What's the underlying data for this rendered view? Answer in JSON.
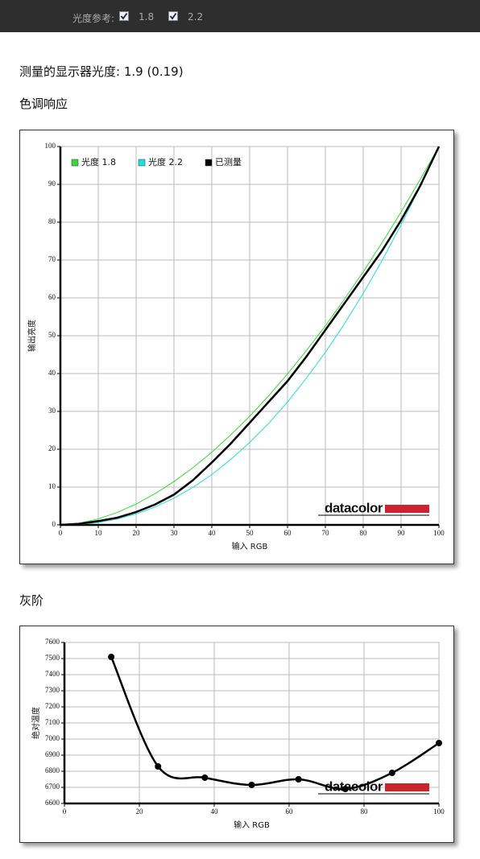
{
  "top_bar": {
    "label": "光度参考:",
    "options": [
      {
        "label": "1.8",
        "checked": true
      },
      {
        "label": "2.2",
        "checked": true
      }
    ]
  },
  "measured_text": "测量的显示器光度: 1.9 (0.19)",
  "chart_data": [
    {
      "type": "line",
      "title": "色调响应",
      "xlabel": "输入 RGB",
      "ylabel": "输出亮度",
      "watermark": "datacolor",
      "x": [
        0,
        5,
        10,
        15,
        20,
        25,
        30,
        35,
        40,
        45,
        50,
        55,
        60,
        65,
        70,
        75,
        80,
        85,
        90,
        95,
        100
      ],
      "series": [
        {
          "name": "光度 1.8",
          "color": "#33dd33",
          "width": 1,
          "values": [
            0,
            0.46,
            1.58,
            3.29,
            5.52,
            8.25,
            11.45,
            15.1,
            19.2,
            23.8,
            28.7,
            34.1,
            39.9,
            46.1,
            52.6,
            59.6,
            66.9,
            74.6,
            82.7,
            91.2,
            100
          ]
        },
        {
          "name": "光度 2.2",
          "color": "#22dddd",
          "width": 1,
          "values": [
            0,
            0.14,
            0.63,
            1.54,
            2.9,
            4.74,
            7.07,
            9.93,
            13.3,
            17.3,
            21.8,
            26.8,
            32.5,
            38.8,
            45.6,
            53.1,
            61.2,
            69.9,
            79.3,
            89.3,
            100
          ]
        },
        {
          "name": "已测量",
          "color": "#000000",
          "width": 2.5,
          "values": [
            0,
            0.3,
            1,
            1.9,
            3.4,
            5.4,
            8,
            11.8,
            16.5,
            21.5,
            27,
            32.5,
            38,
            44.5,
            51.5,
            58.5,
            65.5,
            72.5,
            80.5,
            89.5,
            100
          ]
        }
      ],
      "xlim": [
        0,
        100
      ],
      "ylim": [
        0,
        100
      ],
      "xticks": [
        0,
        10,
        20,
        30,
        40,
        50,
        60,
        70,
        80,
        90,
        100
      ],
      "yticks": [
        0,
        10,
        20,
        30,
        40,
        50,
        60,
        70,
        80,
        90,
        100
      ],
      "grid": true,
      "legend": "upper left"
    },
    {
      "type": "line",
      "title": "灰阶",
      "xlabel": "输入 RGB",
      "ylabel": "绝对温度",
      "watermark": "datacolor",
      "x": [
        12.5,
        25,
        37.5,
        50,
        62.5,
        75,
        87.5,
        100
      ],
      "values": [
        7510,
        6830,
        6760,
        6715,
        6750,
        6690,
        6790,
        6975
      ],
      "color": "#000000",
      "width": 2.5,
      "smooth": true,
      "markers": true,
      "xlim": [
        0,
        100
      ],
      "ylim": [
        6600,
        7600
      ],
      "xticks": [
        0,
        20,
        40,
        60,
        80,
        100
      ],
      "yticks": [
        6600,
        6700,
        6800,
        6900,
        7000,
        7100,
        7200,
        7300,
        7400,
        7500,
        7600
      ],
      "grid": true
    }
  ]
}
